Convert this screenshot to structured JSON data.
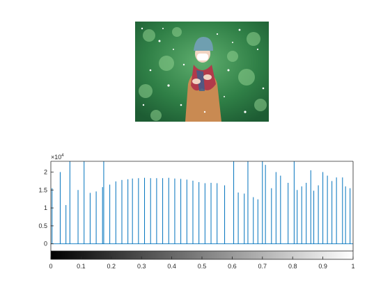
{
  "image_panel": {
    "subject": "person in winter coat and scarf with knit hat and face mask in falling snow",
    "icon": "photo-icon"
  },
  "chart_data": {
    "type": "bar",
    "title": "",
    "xlabel": "",
    "ylabel": "",
    "exponent_label": "×10",
    "exponent_power": "4",
    "xlim": [
      0,
      1
    ],
    "ylim": [
      -0.2,
      2.3
    ],
    "ylim_units": "×10^4 counts",
    "xticks": [
      "0",
      "0.1",
      "0.2",
      "0.3",
      "0.4",
      "0.5",
      "0.6",
      "0.7",
      "0.8",
      "0.9",
      "1"
    ],
    "yticks": [
      "0",
      "0.5",
      "1",
      "1.5",
      "2"
    ],
    "bar_color": "#0072bd",
    "colorbar": "gray",
    "series": [
      {
        "x": [
          0.004,
          0.031,
          0.05,
          0.063,
          0.09,
          0.11,
          0.13,
          0.15,
          0.171,
          0.175,
          0.195,
          0.215,
          0.235,
          0.255,
          0.27,
          0.29,
          0.31,
          0.33,
          0.35,
          0.37,
          0.39,
          0.41,
          0.43,
          0.45,
          0.47,
          0.49,
          0.51,
          0.53,
          0.55,
          0.575,
          0.605,
          0.62,
          0.64,
          0.652,
          0.67,
          0.685,
          0.7,
          0.71,
          0.73,
          0.745,
          0.76,
          0.785,
          0.805,
          0.815,
          0.83,
          0.845,
          0.86,
          0.87,
          0.885,
          0.9,
          0.915,
          0.93,
          0.945,
          0.965,
          0.975,
          0.99
        ],
        "values": [
          1.55,
          2.0,
          1.08,
          2.35,
          1.5,
          2.35,
          1.42,
          1.46,
          1.58,
          2.35,
          1.65,
          1.74,
          1.78,
          1.8,
          1.82,
          1.83,
          1.84,
          1.83,
          1.83,
          1.83,
          1.84,
          1.82,
          1.81,
          1.79,
          1.76,
          1.72,
          1.69,
          1.7,
          1.69,
          1.63,
          2.35,
          1.43,
          1.4,
          2.35,
          1.3,
          1.24,
          2.35,
          2.2,
          1.55,
          2.0,
          1.9,
          1.7,
          2.35,
          1.5,
          1.6,
          1.7,
          2.05,
          1.48,
          1.63,
          2.0,
          1.9,
          1.75,
          1.85,
          1.85,
          1.6,
          1.55
        ]
      }
    ]
  }
}
